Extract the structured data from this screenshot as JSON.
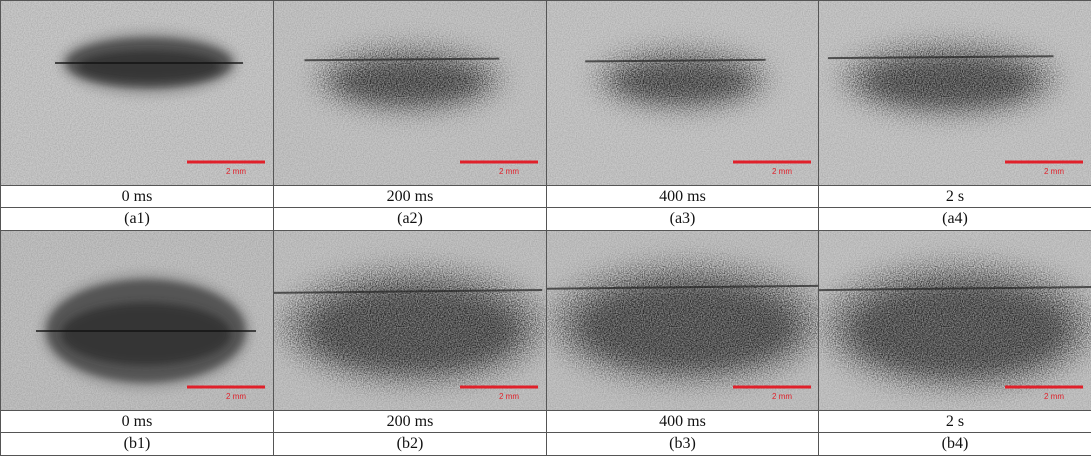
{
  "rows": [
    {
      "panels": [
        {
          "time": "0 ms",
          "label": "(a1)",
          "scale": "2 mm"
        },
        {
          "time": "200 ms",
          "label": "(a2)",
          "scale": "2 mm"
        },
        {
          "time": "400 ms",
          "label": "(a3)",
          "scale": "2 mm"
        },
        {
          "time": "2 s",
          "label": "(a4)",
          "scale": "2 mm"
        }
      ]
    },
    {
      "panels": [
        {
          "time": "0 ms",
          "label": "(b1)",
          "scale": "2 mm"
        },
        {
          "time": "200 ms",
          "label": "(b2)",
          "scale": "2 mm"
        },
        {
          "time": "400 ms",
          "label": "(b3)",
          "scale": "2 mm"
        },
        {
          "time": "2 s",
          "label": "(b4)",
          "scale": "2 mm"
        }
      ]
    }
  ]
}
